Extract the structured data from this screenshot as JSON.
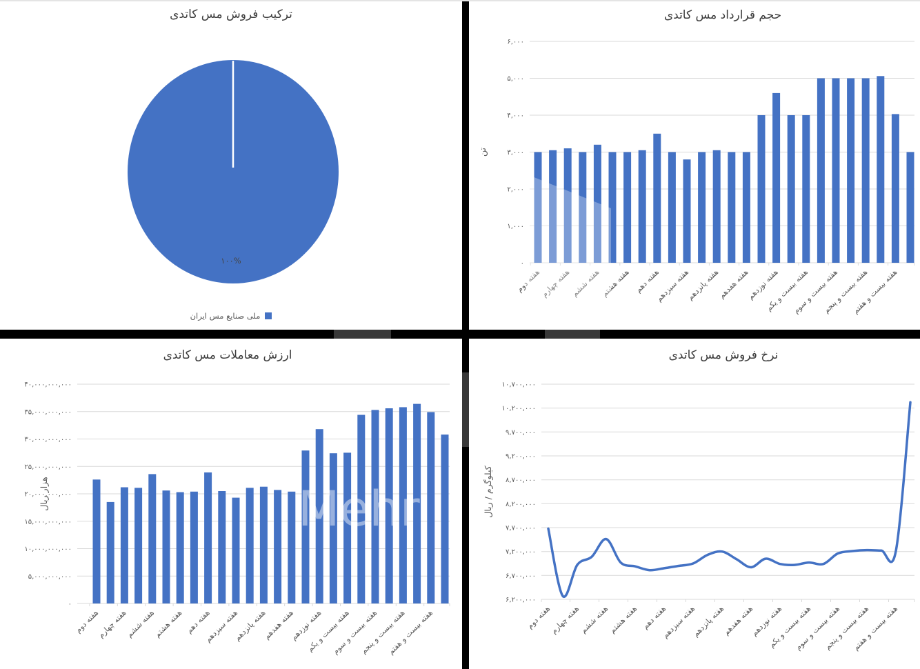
{
  "colors": {
    "accent": "#4472C4",
    "grid": "#D9D9D9",
    "axis_text": "#595959",
    "title_text": "#3D3D3D",
    "divider": "#000000",
    "background": "#FFFFFF"
  },
  "watermark": {
    "text": "Mehr"
  },
  "week_labels": [
    "هفته دوم",
    "هفته چهارم",
    "هفته ششم",
    "هفته هشتم",
    "هفته دهم",
    "هفته سیزدهم",
    "هفته پانزدهم",
    "هفته هفدهم",
    "هفته نوزدهم",
    "هفته بیست و یکم",
    "هفته بیست و سوم",
    "هفته بیست و پنجم",
    "هفته بیست و هفتم"
  ],
  "chart_data": [
    {
      "id": "sales_mix",
      "type": "pie",
      "title": "ترکیب فروش مس کاتدی",
      "labels": [
        "ملی صنایع مس ایران"
      ],
      "values": [
        100
      ],
      "slice_labels": [
        "۱۰۰%"
      ],
      "legend_position": "bottom",
      "slice_color": "#4472C4"
    },
    {
      "id": "contract_volume",
      "type": "bar",
      "title": "حجم قرارداد مس کاتدی",
      "ylabel": "تن",
      "ylim": [
        0,
        6000
      ],
      "grid": true,
      "y_ticks": [
        {
          "value": 6000,
          "label": "۶,۰۰۰"
        },
        {
          "value": 5000,
          "label": "۵,۰۰۰"
        },
        {
          "value": 4000,
          "label": "۴,۰۰۰"
        },
        {
          "value": 3000,
          "label": "۳,۰۰۰"
        },
        {
          "value": 2000,
          "label": "۲,۰۰۰"
        },
        {
          "value": 1000,
          "label": "۱,۰۰۰"
        },
        {
          "value": 0,
          "label": "۰"
        }
      ],
      "x_labels": [
        "هفته دوم",
        "هفته چهارم",
        "هفته ششم",
        "هفته هشتم",
        "هفته دهم",
        "هفته سیزدهم",
        "هفته پانزدهم",
        "هفته هفدهم",
        "هفته نوزدهم",
        "هفته بیست و یکم",
        "هفته بیست و سوم",
        "هفته بیست و پنجم",
        "هفته بیست و هفتم"
      ],
      "label_interval": 2,
      "values": [
        3000,
        3050,
        3100,
        3000,
        3200,
        3000,
        3000,
        3050,
        3500,
        3000,
        2800,
        3000,
        3050,
        3000,
        3000,
        4000,
        4600,
        4000,
        4000,
        5000,
        5000,
        5000,
        5000,
        5060,
        4030,
        3000
      ]
    },
    {
      "id": "trade_value",
      "type": "bar",
      "title": "ارزش معاملات مس کاتدی",
      "ylabel": "هزار ریال",
      "ylim": [
        0,
        40000000000
      ],
      "grid": true,
      "y_ticks": [
        {
          "value": 40000000000,
          "label": "۴۰,۰۰۰,۰۰۰,۰۰۰"
        },
        {
          "value": 35000000000,
          "label": "۳۵,۰۰۰,۰۰۰,۰۰۰"
        },
        {
          "value": 30000000000,
          "label": "۳۰,۰۰۰,۰۰۰,۰۰۰"
        },
        {
          "value": 25000000000,
          "label": "۲۵,۰۰۰,۰۰۰,۰۰۰"
        },
        {
          "value": 20000000000,
          "label": "۲۰,۰۰۰,۰۰۰,۰۰۰"
        },
        {
          "value": 15000000000,
          "label": "۱۵,۰۰۰,۰۰۰,۰۰۰"
        },
        {
          "value": 10000000000,
          "label": "۱۰,۰۰۰,۰۰۰,۰۰۰"
        },
        {
          "value": 5000000000,
          "label": "۵,۰۰۰,۰۰۰,۰۰۰"
        },
        {
          "value": 0,
          "label": "۰"
        }
      ],
      "x_labels": [
        "هفته دوم",
        "هفته چهارم",
        "هفته ششم",
        "هفته هشتم",
        "هفته دهم",
        "هفته سیزدهم",
        "هفته پانزدهم",
        "هفته هفدهم",
        "هفته نوزدهم",
        "هفته بیست و یکم",
        "هفته بیست و سوم",
        "هفته بیست و پنجم",
        "هفته بیست و هفتم"
      ],
      "label_interval": 2,
      "values": [
        22600000000,
        18500000000,
        21200000000,
        21100000000,
        23600000000,
        20600000000,
        20300000000,
        20400000000,
        23900000000,
        20500000000,
        19300000000,
        21100000000,
        21300000000,
        20700000000,
        20400000000,
        27900000000,
        31800000000,
        27400000000,
        27500000000,
        34400000000,
        35300000000,
        35600000000,
        35800000000,
        36400000000,
        34900000000,
        30800000000
      ]
    },
    {
      "id": "sale_rate",
      "type": "line",
      "title": "نرخ فروش مس کاتدی",
      "ylabel": "کیلوگرم / ریال",
      "ylim": [
        6200000,
        10700000
      ],
      "grid": true,
      "y_ticks": [
        {
          "value": 10700000,
          "label": "۱۰,۷۰۰,۰۰۰"
        },
        {
          "value": 10200000,
          "label": "۱۰,۲۰۰,۰۰۰"
        },
        {
          "value": 9700000,
          "label": "۹,۷۰۰,۰۰۰"
        },
        {
          "value": 9200000,
          "label": "۹,۲۰۰,۰۰۰"
        },
        {
          "value": 8700000,
          "label": "۸,۷۰۰,۰۰۰"
        },
        {
          "value": 8200000,
          "label": "۸,۲۰۰,۰۰۰"
        },
        {
          "value": 7700000,
          "label": "۷,۷۰۰,۰۰۰"
        },
        {
          "value": 7200000,
          "label": "۷,۲۰۰,۰۰۰"
        },
        {
          "value": 6700000,
          "label": "۶,۷۰۰,۰۰۰"
        },
        {
          "value": 6200000,
          "label": "۶,۲۰۰,۰۰۰"
        }
      ],
      "x_labels": [
        "هفته دوم",
        "هفته چهارم",
        "هفته ششم",
        "هفته هشتم",
        "هفته دهم",
        "هفته سیزدهم",
        "هفته پانزدهم",
        "هفته هفدهم",
        "هفته نوزدهم",
        "هفته بیست و یکم",
        "هفته بیست و سوم",
        "هفته بیست و پنجم",
        "هفته بیست و هفتم"
      ],
      "label_interval": 2,
      "values": [
        7680000,
        6270000,
        6920000,
        7090000,
        7460000,
        6970000,
        6890000,
        6810000,
        6850000,
        6900000,
        6950000,
        7130000,
        7200000,
        7040000,
        6870000,
        7050000,
        6940000,
        6920000,
        6970000,
        6940000,
        7160000,
        7210000,
        7230000,
        7220000,
        7210000,
        10320000
      ]
    }
  ]
}
